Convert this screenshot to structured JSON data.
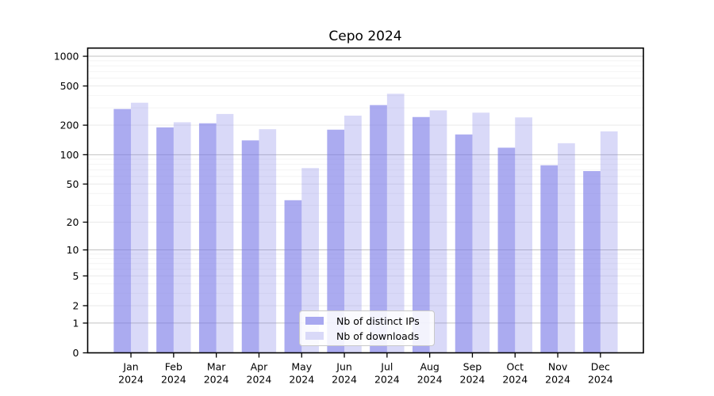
{
  "chart_data": {
    "type": "bar",
    "title": "Cepo 2024",
    "categories": [
      "Jan 2024",
      "Feb 2024",
      "Mar 2024",
      "Apr 2024",
      "May 2024",
      "Jun 2024",
      "Jul 2024",
      "Aug 2024",
      "Sep 2024",
      "Oct 2024",
      "Nov 2024",
      "Dec 2024"
    ],
    "series": [
      {
        "name": "Nb of distinct IPs",
        "color": "#a8a8f0",
        "fill": "rgba(120,120,230,0.62)",
        "values": [
          292,
          190,
          209,
          140,
          34,
          180,
          320,
          242,
          161,
          118,
          78,
          68
        ]
      },
      {
        "name": "Nb of downloads",
        "color": "#d9d9f8",
        "fill": "rgba(120,120,230,0.28)",
        "values": [
          338,
          214,
          260,
          182,
          73,
          250,
          417,
          283,
          268,
          240,
          131,
          173
        ]
      }
    ],
    "xlabel": "",
    "ylabel": "",
    "y_scale": "symlog",
    "y_ticks": [
      0,
      1,
      2,
      5,
      10,
      20,
      50,
      100,
      200,
      500,
      1000
    ],
    "y_minor_gridlines": [
      3,
      4,
      6,
      7,
      8,
      9,
      30,
      40,
      60,
      70,
      80,
      90,
      300,
      400,
      600,
      700,
      800,
      900
    ],
    "ylim": [
      0,
      1210
    ],
    "grid": true,
    "legend_position": "lower center",
    "colors": {
      "major_gridline": "#c2c2c2",
      "labeled_gridline": "#e9e9e9",
      "minor_gridline": "#f4f4f4",
      "axis": "#000000"
    }
  }
}
